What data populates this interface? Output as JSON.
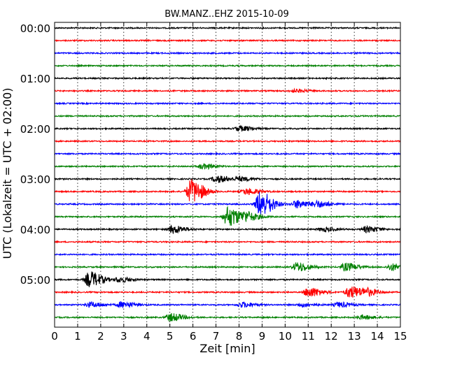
{
  "chart_data": {
    "type": "line",
    "title": "BW.MANZ..EHZ 2015-10-09",
    "xlabel": "Zeit  [min]",
    "ylabel": "UTC (Lokalzeit = UTC + 02:00)",
    "xlim": [
      0,
      15
    ],
    "x_ticks": [
      "0",
      "1",
      "2",
      "3",
      "4",
      "5",
      "6",
      "7",
      "8",
      "9",
      "10",
      "11",
      "12",
      "13",
      "14",
      "15"
    ],
    "y_ticks": [
      "00:00",
      "01:00",
      "02:00",
      "03:00",
      "04:00",
      "05:00"
    ],
    "grid": "vertical dotted",
    "trace_colors": [
      "#000000",
      "#ff0000",
      "#0000ff",
      "#008000"
    ],
    "traces": [
      {
        "start": "00:00",
        "color": "#000000",
        "events": []
      },
      {
        "start": "00:15",
        "color": "#ff0000",
        "events": []
      },
      {
        "start": "00:30",
        "color": "#0000ff",
        "events": []
      },
      {
        "start": "00:45",
        "color": "#008000",
        "events": []
      },
      {
        "start": "01:00",
        "color": "#000000",
        "events": []
      },
      {
        "start": "01:15",
        "color": "#ff0000",
        "events": [
          {
            "t": 10.4,
            "amp": 0.15
          }
        ]
      },
      {
        "start": "01:30",
        "color": "#0000ff",
        "events": []
      },
      {
        "start": "01:45",
        "color": "#008000",
        "events": []
      },
      {
        "start": "02:00",
        "color": "#000000",
        "events": [
          {
            "t": 8.0,
            "amp": 0.25
          }
        ]
      },
      {
        "start": "02:15",
        "color": "#ff0000",
        "events": []
      },
      {
        "start": "02:30",
        "color": "#0000ff",
        "events": []
      },
      {
        "start": "02:45",
        "color": "#008000",
        "events": [
          {
            "t": 6.4,
            "amp": 0.25
          }
        ]
      },
      {
        "start": "03:00",
        "color": "#000000",
        "events": [
          {
            "t": 7.0,
            "amp": 0.35
          },
          {
            "t": 8.0,
            "amp": 0.2
          }
        ]
      },
      {
        "start": "03:15",
        "color": "#ff0000",
        "events": [
          {
            "t": 5.9,
            "amp": 1.2
          },
          {
            "t": 8.3,
            "amp": 0.3
          }
        ]
      },
      {
        "start": "03:30",
        "color": "#0000ff",
        "events": [
          {
            "t": 8.9,
            "amp": 1.3
          },
          {
            "t": 10.5,
            "amp": 0.4
          },
          {
            "t": 11.4,
            "amp": 0.3
          }
        ]
      },
      {
        "start": "03:45",
        "color": "#008000",
        "events": [
          {
            "t": 7.5,
            "amp": 1.0
          },
          {
            "t": 8.3,
            "amp": 0.4
          }
        ]
      },
      {
        "start": "04:00",
        "color": "#000000",
        "events": [
          {
            "t": 5.1,
            "amp": 0.4
          },
          {
            "t": 13.5,
            "amp": 0.3
          },
          {
            "t": 11.6,
            "amp": 0.2
          }
        ]
      },
      {
        "start": "04:15",
        "color": "#ff0000",
        "events": []
      },
      {
        "start": "04:30",
        "color": "#0000ff",
        "events": []
      },
      {
        "start": "04:45",
        "color": "#008000",
        "events": [
          {
            "t": 10.5,
            "amp": 0.45
          },
          {
            "t": 12.6,
            "amp": 0.4
          },
          {
            "t": 14.6,
            "amp": 0.35
          }
        ]
      },
      {
        "start": "05:00",
        "color": "#000000",
        "events": [
          {
            "t": 1.5,
            "amp": 0.8
          },
          {
            "t": 2.8,
            "amp": 0.25
          }
        ]
      },
      {
        "start": "05:15",
        "color": "#ff0000",
        "events": [
          {
            "t": 11.0,
            "amp": 0.5
          },
          {
            "t": 12.8,
            "amp": 0.6
          },
          {
            "t": 13.5,
            "amp": 0.3
          }
        ]
      },
      {
        "start": "05:30",
        "color": "#0000ff",
        "events": [
          {
            "t": 1.5,
            "amp": 0.25
          },
          {
            "t": 2.9,
            "amp": 0.3
          },
          {
            "t": 8.1,
            "amp": 0.25
          },
          {
            "t": 10.7,
            "amp": 0.2
          },
          {
            "t": 12.3,
            "amp": 0.25
          }
        ]
      },
      {
        "start": "05:45",
        "color": "#008000",
        "events": [
          {
            "t": 5.0,
            "amp": 0.4
          },
          {
            "t": 13.3,
            "amp": 0.2
          }
        ]
      }
    ]
  }
}
